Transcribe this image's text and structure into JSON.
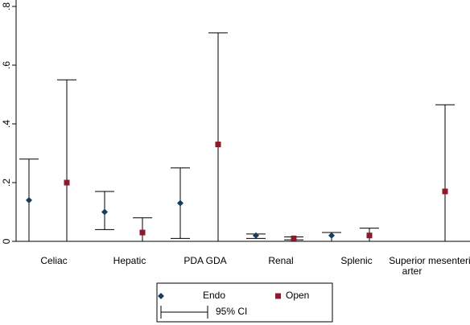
{
  "chart_data": {
    "type": "errorbar",
    "categories": [
      "Celiac",
      "Hepatic",
      "PDA GDA",
      "Renal",
      "Splenic",
      "Superior mesenteric arter"
    ],
    "series": [
      {
        "name": "Endo",
        "color": "#1a3d5c",
        "values": [
          0.14,
          0.1,
          0.13,
          0.02,
          0.02,
          null
        ],
        "lower": [
          0,
          0.04,
          0.01,
          0.01,
          0,
          null
        ],
        "upper": [
          0.28,
          0.17,
          0.25,
          0.025,
          0.03,
          null
        ]
      },
      {
        "name": "Open",
        "color": "#8b1a2b",
        "values": [
          0.2,
          0.03,
          0.33,
          0.01,
          0.02,
          0.17
        ],
        "lower": [
          0,
          0,
          0,
          0.005,
          0,
          0
        ],
        "upper": [
          0.55,
          0.08,
          0.71,
          0.015,
          0.045,
          0.465
        ]
      }
    ],
    "ci_label": "95% CI",
    "ylim": [
      0,
      0.8
    ],
    "yticks": [
      {
        "value": 0,
        "label": "0"
      },
      {
        "value": 0.2,
        "label": ".2"
      },
      {
        "value": 0.4,
        "label": ".4"
      },
      {
        "value": 0.6,
        "label": ".6"
      },
      {
        "value": 0.8,
        "label": ".8"
      }
    ]
  }
}
